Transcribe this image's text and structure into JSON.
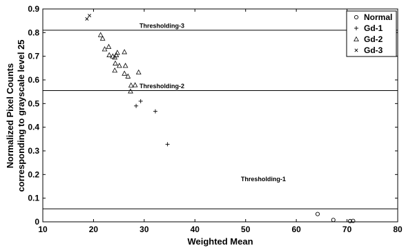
{
  "chart_data": {
    "type": "scatter",
    "xlabel": "Weighted Mean",
    "ylabel_lines": [
      "Normalized Pixel Counts",
      "corresponding to grayscale level 25"
    ],
    "xlim": [
      10,
      80
    ],
    "ylim": [
      0,
      0.9
    ],
    "x_ticks": [
      "10",
      "20",
      "30",
      "40",
      "50",
      "60",
      "70",
      "80"
    ],
    "y_ticks": [
      "0",
      "0.1",
      "0.2",
      "0.3",
      "0.4",
      "0.5",
      "0.6",
      "0.7",
      "0.8",
      "0.9"
    ],
    "thresholds": [
      {
        "label": "Thresholding-3",
        "value": 0.81,
        "label_x": 33.5,
        "label_y": 0.82
      },
      {
        "label": "Thresholding-2",
        "value": 0.555,
        "label_x": 33.5,
        "label_y": 0.565
      },
      {
        "label": "Thresholding-1",
        "value": 0.055,
        "label_x": 53.5,
        "label_y": 0.172
      }
    ],
    "legend_position": "top-right",
    "series": [
      {
        "name": "Normal",
        "marker": "circle",
        "points": [
          [
            64.2,
            0.033
          ],
          [
            67.3,
            0.008
          ],
          [
            70.6,
            0.003
          ],
          [
            71.2,
            0.004
          ]
        ]
      },
      {
        "name": "Gd-1",
        "marker": "plus",
        "points": [
          [
            28.4,
            0.49
          ],
          [
            29.3,
            0.51
          ],
          [
            32.2,
            0.467
          ],
          [
            34.6,
            0.328
          ]
        ]
      },
      {
        "name": "Gd-2",
        "marker": "triangle",
        "points": [
          [
            21.4,
            0.79
          ],
          [
            21.8,
            0.775
          ],
          [
            22.2,
            0.73
          ],
          [
            23.0,
            0.74
          ],
          [
            23.1,
            0.705
          ],
          [
            23.8,
            0.7
          ],
          [
            24.2,
            0.695
          ],
          [
            24.5,
            0.705
          ],
          [
            24.7,
            0.715
          ],
          [
            24.3,
            0.67
          ],
          [
            25.1,
            0.66
          ],
          [
            24.2,
            0.64
          ],
          [
            26.1,
            0.718
          ],
          [
            26.3,
            0.66
          ],
          [
            26.1,
            0.627
          ],
          [
            26.8,
            0.615
          ],
          [
            27.4,
            0.577
          ],
          [
            27.3,
            0.552
          ],
          [
            28.2,
            0.578
          ],
          [
            28.9,
            0.632
          ]
        ]
      },
      {
        "name": "Gd-3",
        "marker": "x",
        "points": [
          [
            18.7,
            0.858
          ],
          [
            19.2,
            0.872
          ]
        ]
      }
    ]
  }
}
